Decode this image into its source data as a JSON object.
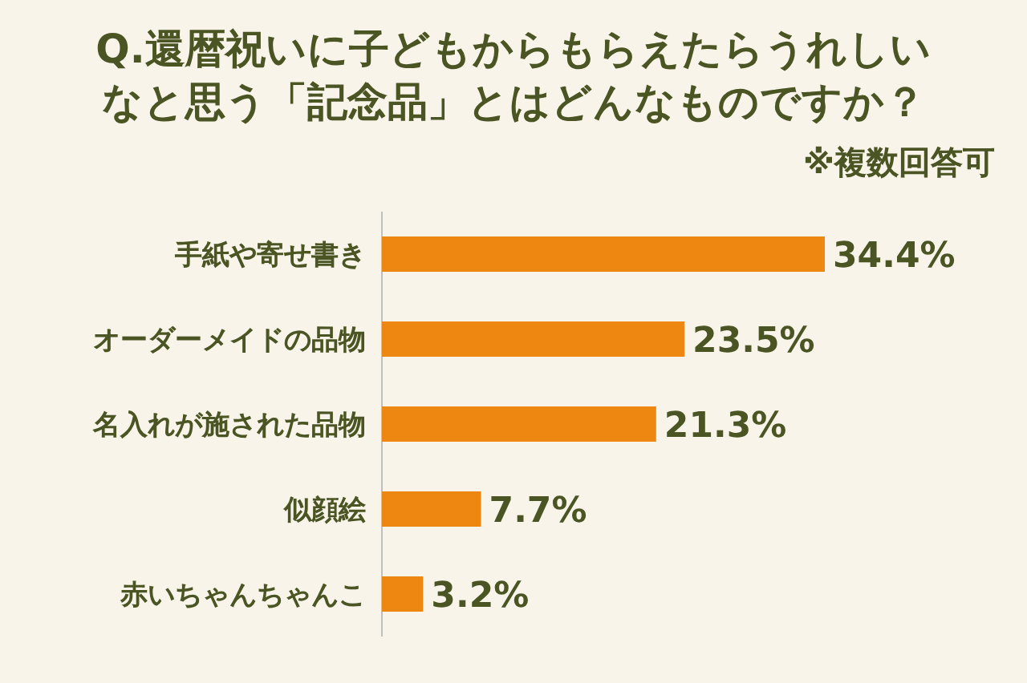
{
  "chart_data": {
    "type": "bar",
    "orientation": "horizontal",
    "title": "Q.還暦祝いに子どもからもらえたらうれしいなと思う「記念品」とはどんなものですか？",
    "subtitle": "※複数回答可",
    "categories": [
      "手紙や寄せ書き",
      "オーダーメイドの品物",
      "名入れが施された品物",
      "似顔絵",
      "赤いちゃんちゃんこ"
    ],
    "values": [
      34.4,
      23.5,
      21.3,
      7.7,
      3.2
    ],
    "value_labels": [
      "34.4%",
      "23.5%",
      "21.3%",
      "7.7%",
      "3.2%"
    ],
    "color": "#ee8712"
  }
}
